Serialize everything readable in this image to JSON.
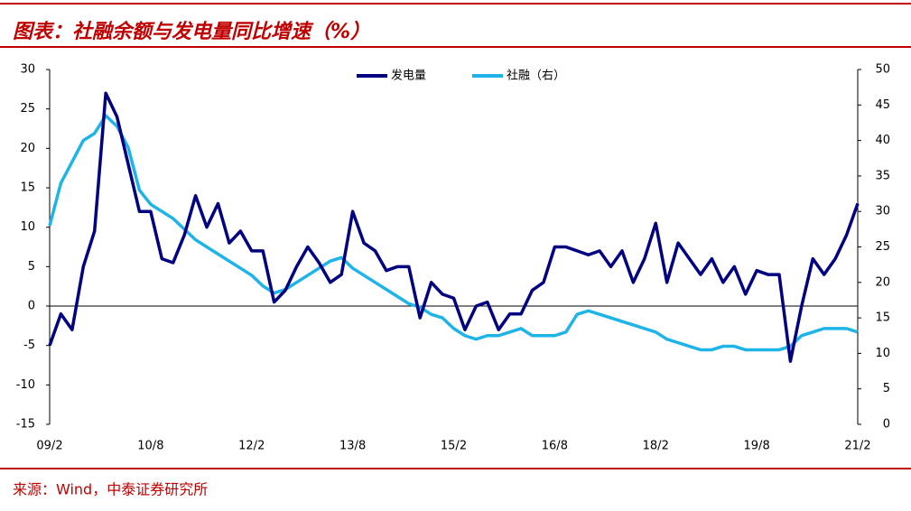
{
  "title": "图表：社融余额与发电量同比增速（%）",
  "source": "来源：Wind，中泰证券研究所",
  "chart_data": {
    "type": "line",
    "categories": [
      "09/2",
      null,
      null,
      null,
      null,
      null,
      null,
      null,
      null,
      "10/8",
      null,
      null,
      null,
      null,
      null,
      null,
      null,
      null,
      "12/2",
      null,
      null,
      null,
      null,
      null,
      null,
      null,
      null,
      "13/8",
      null,
      null,
      null,
      null,
      null,
      null,
      null,
      null,
      "15/2",
      null,
      null,
      null,
      null,
      null,
      null,
      null,
      null,
      "16/8",
      null,
      null,
      null,
      null,
      null,
      null,
      null,
      null,
      "18/2",
      null,
      null,
      null,
      null,
      null,
      null,
      null,
      null,
      "19/8",
      null,
      null,
      null,
      null,
      null,
      null,
      null,
      null,
      "21/2"
    ],
    "series": [
      {
        "name": "发电量",
        "color": "#000080",
        "values": [
          -5,
          -1,
          -3,
          5,
          9.5,
          27,
          24,
          18,
          12,
          12,
          6,
          5.5,
          9,
          14,
          10,
          13,
          8,
          9.5,
          7,
          7,
          0.5,
          2,
          5,
          7.5,
          5.5,
          3,
          4,
          12,
          8,
          7,
          4.5,
          5,
          5,
          -1.5,
          3,
          1.5,
          1,
          -3,
          0,
          0.5,
          -3,
          -1,
          -1,
          2,
          3,
          7.5,
          7.5,
          7,
          6.5,
          7,
          5,
          7,
          3,
          6,
          10.5,
          3,
          8,
          6,
          4,
          6,
          3,
          5,
          1.5,
          4.5,
          4,
          4,
          -7,
          0,
          6,
          4,
          6,
          9,
          13
        ]
      },
      {
        "name": "社融（右）",
        "color": "#1fb4e8",
        "axis": "y2",
        "values": [
          28,
          34,
          37,
          40,
          41,
          43.5,
          42,
          39,
          33,
          31,
          30,
          29,
          27.5,
          26,
          25,
          24,
          23,
          22,
          21,
          19.5,
          18.5,
          19,
          20,
          21,
          22,
          23,
          23.5,
          22,
          21,
          20,
          19,
          18,
          17,
          16.5,
          15.5,
          15,
          13.5,
          12.5,
          12,
          12.5,
          12.5,
          13,
          13.5,
          12.5,
          12.5,
          12.5,
          13,
          15.5,
          16,
          15.5,
          15,
          14.5,
          14,
          13.5,
          13,
          12,
          11.5,
          11,
          10.5,
          10.5,
          11,
          11,
          10.5,
          10.5,
          10.5,
          10.5,
          11,
          12.5,
          13,
          13.5,
          13.5,
          13.5,
          13
        ]
      }
    ],
    "ylim": [
      -15,
      30
    ],
    "yticks": [
      -15,
      -10,
      -5,
      0,
      5,
      10,
      15,
      20,
      25,
      30
    ],
    "y2lim": [
      0,
      50
    ],
    "y2ticks": [
      0,
      5,
      10,
      15,
      20,
      25,
      30,
      35,
      40,
      45,
      50
    ],
    "legend": "top"
  }
}
